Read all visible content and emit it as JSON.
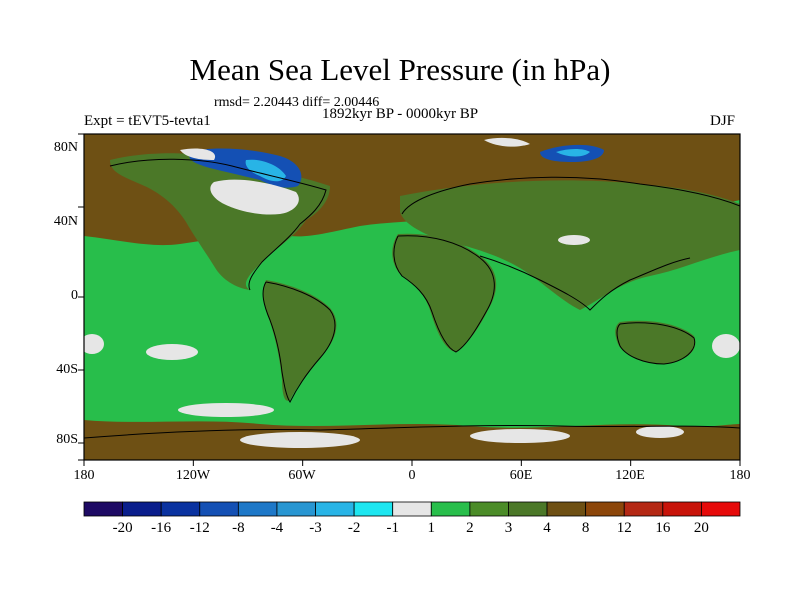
{
  "title": "Mean Sea Level Pressure (in hPa)",
  "stats": "rmsd= 2.20443 diff= 2.00446",
  "period": "1892kyr BP - 0000kyr BP",
  "experiment": "Expt = tEVT5-tevta1",
  "season": "DJF",
  "y_ticks": [
    "80N",
    "40N",
    "0",
    "40S",
    "80S"
  ],
  "x_ticks": [
    "180",
    "120W",
    "60W",
    "0",
    "60E",
    "120E",
    "180"
  ],
  "colorbar": {
    "labels": [
      "-20",
      "-16",
      "-12",
      "-8",
      "-4",
      "-3",
      "-2",
      "-1",
      "1",
      "2",
      "3",
      "4",
      "8",
      "12",
      "16",
      "20"
    ],
    "colors": [
      "#1e0a64",
      "#0a1e8c",
      "#0a32a0",
      "#1450b4",
      "#1e78c8",
      "#2896d2",
      "#28b4e6",
      "#1ee6f0",
      "#e6e6e6",
      "#28be4b",
      "#4b8c28",
      "#4b7828",
      "#6e5014",
      "#8c460a",
      "#b42814",
      "#c8140a",
      "#e60a0a"
    ]
  },
  "map_colors": {
    "ocean_base": "#28be4b",
    "land_base": "#4b7828",
    "high_band": "#6e5014",
    "near_zero": "#e6e6e6",
    "low_deep": "#1450b4",
    "low_mid": "#28b4e6"
  }
}
